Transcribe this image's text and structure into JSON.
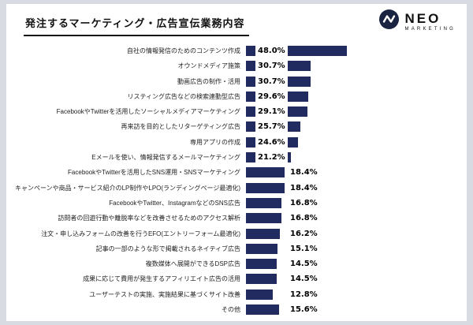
{
  "title": "発注するマーケティング・広告宣伝業務内容",
  "logo": {
    "name": "NEO",
    "subtext": "MARKETING",
    "icon": "wave-icon"
  },
  "colors": {
    "background": "#d9dbe3",
    "panel": "#ffffff",
    "bar": "#212b5f",
    "title_underline": "#111111",
    "logo_circle": "#1a2340"
  },
  "chart_data": {
    "type": "bar",
    "orientation": "horizontal",
    "unit": "%",
    "title": "発注するマーケティング・広告宣伝業務内容",
    "xlim": [
      0,
      50
    ],
    "grid": false,
    "legend": false,
    "categories": [
      "自社の情報発信のためのコンテンツ作成",
      "オウンドメディア施策",
      "動画広告の制作・活用",
      "リスティング広告などの検索連動型広告",
      "FacebookやTwitterを活用したソーシャルメディアマーケティング",
      "再来訪を目的としたリターゲティング広告",
      "専用アプリの作成",
      "Eメールを使い、情報発信するメールマーケティング",
      "FacebookやTwitterを活用したSNS運用・SNSマーケティング",
      "キャンペーンや商品・サービス紹介のLP制作やLPO(ランディングページ最適化)",
      "FacebookやTwitter、InstagramなどのSNS広告",
      "訪問者の回遊行動や離脱率などを改善させるためのアクセス解析",
      "注文・申し込みフォームの改善を行うEFO(エントリーフォーム最適化)",
      "記事の一部のような形で掲載されるネイティブ広告",
      "複数媒体へ展開ができるDSP広告",
      "成果に応じて費用が発生するアフィリエイト広告の活用",
      "ユーザーテストの実施、実施結果に基づくサイト改善",
      "その他"
    ],
    "values": [
      48.0,
      30.7,
      30.7,
      29.6,
      29.1,
      25.7,
      24.6,
      21.2,
      18.4,
      18.4,
      16.8,
      16.8,
      16.2,
      15.1,
      14.5,
      14.5,
      12.8,
      15.6
    ],
    "value_labels": [
      "48.0%",
      "30.7%",
      "30.7%",
      "29.6%",
      "29.1%",
      "25.7%",
      "24.6%",
      "21.2%",
      "18.4%",
      "18.4%",
      "16.8%",
      "16.8%",
      "16.2%",
      "15.1%",
      "14.5%",
      "14.5%",
      "12.8%",
      "15.6%"
    ]
  }
}
